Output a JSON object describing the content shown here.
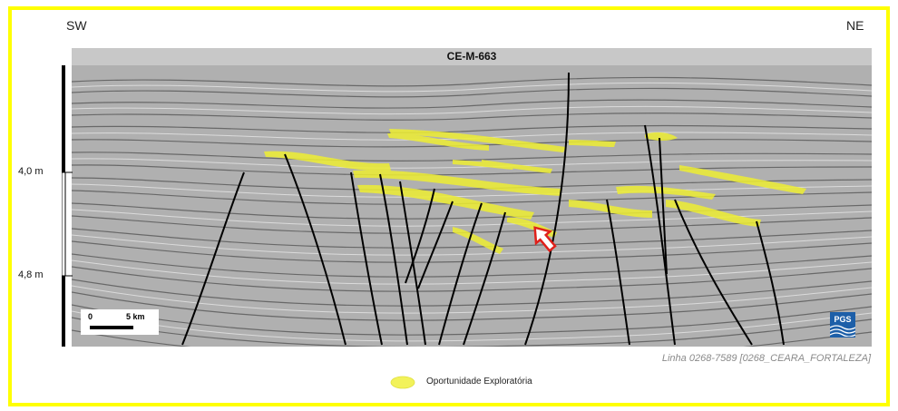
{
  "directions": {
    "left": "SW",
    "right": "NE"
  },
  "line_name": "CE-M-663",
  "depth_ticks": [
    "4,0 m",
    "4,8 m"
  ],
  "scale_bar": {
    "start": "0",
    "end": "5 km"
  },
  "logo_text": "PGS",
  "credit": "Linha 0268-7589 [0268_CEARA_FORTALEZA]",
  "legend": {
    "label": "Oportunidade Exploratória",
    "color": "#f2f25a"
  },
  "colors": {
    "frame": "#ffff00",
    "highlight": "#eeee33",
    "arrow": "#e0201a",
    "fault": "#000000"
  }
}
